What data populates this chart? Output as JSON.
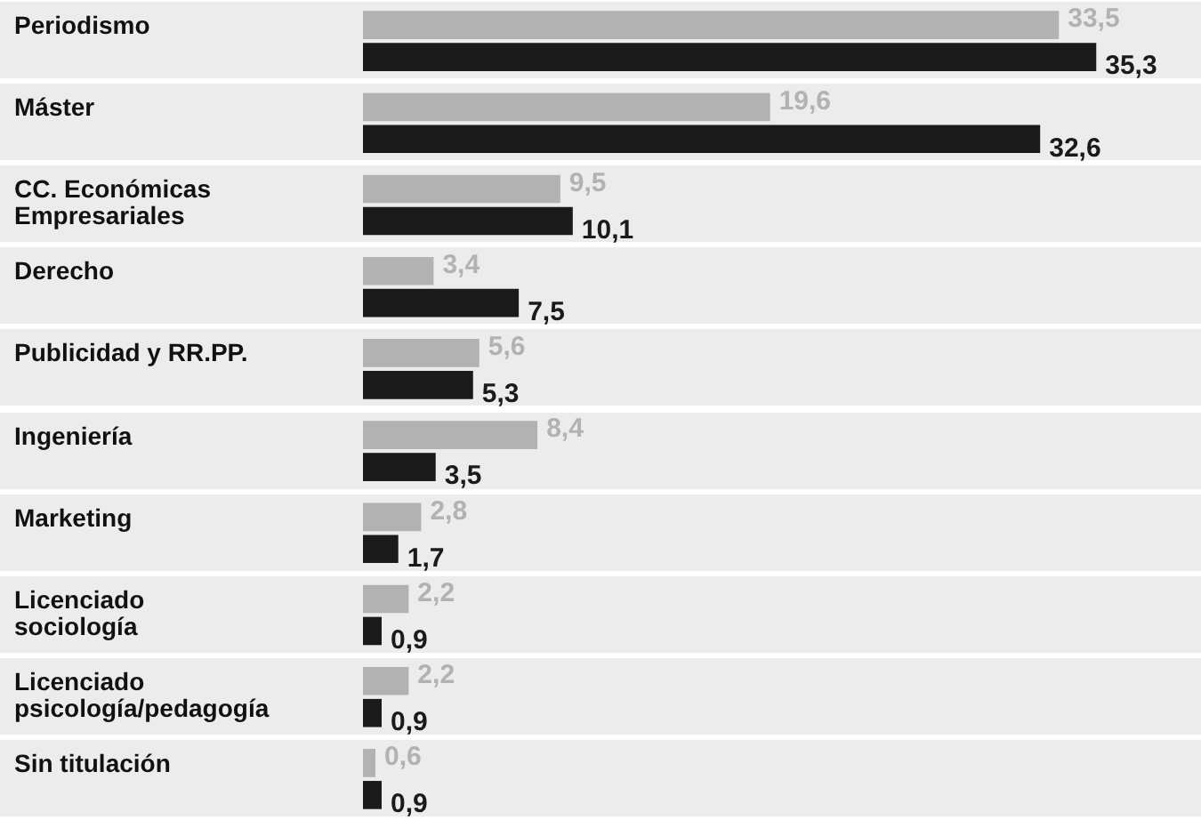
{
  "chart_data": {
    "type": "bar",
    "orientation": "horizontal",
    "categories": [
      "Periodismo",
      "Máster",
      "CC. Económicas Empresariales",
      "Derecho",
      "Publicidad y RR.PP.",
      "Ingeniería",
      "Marketing",
      "Licenciado sociología",
      "Licenciado psicología/pedagogía",
      "Sin titulación"
    ],
    "series": [
      {
        "color": "#b2b2b2",
        "values": [
          33.5,
          19.6,
          9.5,
          3.4,
          5.6,
          8.4,
          2.8,
          2.2,
          2.2,
          0.6
        ],
        "value_labels": [
          "33,5",
          "19,6",
          "9,5",
          "3,4",
          "5,6",
          "8,4",
          "2,8",
          "2,2",
          "2,2",
          "0,6"
        ]
      },
      {
        "color": "#1a1a1a",
        "values": [
          35.3,
          32.6,
          10.1,
          7.5,
          5.3,
          3.5,
          1.7,
          0.9,
          0.9,
          0.9
        ],
        "value_labels": [
          "35,3",
          "32,6",
          "10,1",
          "7,5",
          "5,3",
          "3,5",
          "1,7",
          "0,9",
          "0,9",
          "0,9"
        ]
      }
    ],
    "tick_labels": false
  }
}
